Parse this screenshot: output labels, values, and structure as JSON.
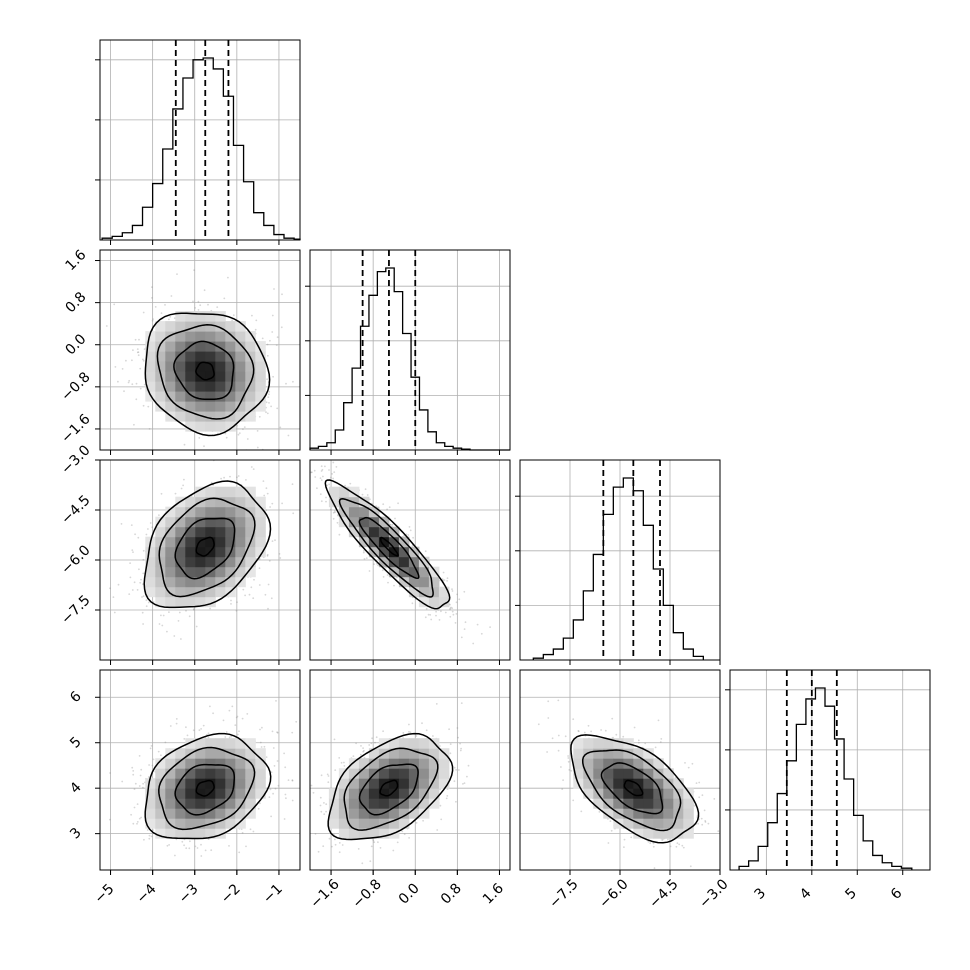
{
  "chart_data": {
    "type": "corner",
    "parameters": [
      {
        "index": 0,
        "ticks": [
          -5,
          -4,
          -3,
          -2,
          -1
        ],
        "tick_labels": [
          "−5",
          "−4",
          "−3",
          "−2",
          "−1"
        ],
        "range": [
          -5.25,
          -0.5
        ],
        "histogram": {
          "bin_edges": [
            -5.2,
            -4.96,
            -4.72,
            -4.48,
            -4.24,
            -4.0,
            -3.76,
            -3.52,
            -3.28,
            -3.04,
            -2.8,
            -2.56,
            -2.32,
            -2.08,
            -1.84,
            -1.6,
            -1.36,
            -1.12,
            -0.88,
            -0.64,
            -0.5
          ],
          "relative_counts": [
            0.01,
            0.02,
            0.04,
            0.08,
            0.18,
            0.31,
            0.5,
            0.72,
            0.89,
            0.99,
            1.0,
            0.94,
            0.79,
            0.52,
            0.32,
            0.15,
            0.08,
            0.03,
            0.01,
            0.005
          ]
        },
        "quantiles": [
          -3.45,
          -2.75,
          -2.2
        ],
        "yaxis_ticks_relative": [
          0.33,
          0.66,
          0.99
        ]
      },
      {
        "index": 1,
        "ticks": [
          -1.6,
          -0.8,
          0.0,
          0.8,
          1.6
        ],
        "tick_labels": [
          "−1.6",
          "−0.8",
          "0.0",
          "0.8",
          "1.6"
        ],
        "range": [
          -2.0,
          1.8
        ],
        "histogram": {
          "bin_edges": [
            -2.0,
            -1.84,
            -1.68,
            -1.52,
            -1.36,
            -1.2,
            -1.04,
            -0.88,
            -0.72,
            -0.56,
            -0.4,
            -0.24,
            -0.08,
            0.08,
            0.24,
            0.4,
            0.56,
            0.72,
            0.88,
            1.04,
            1.8
          ],
          "relative_counts": [
            0.01,
            0.02,
            0.04,
            0.11,
            0.26,
            0.45,
            0.68,
            0.85,
            0.98,
            1.0,
            0.87,
            0.64,
            0.4,
            0.22,
            0.1,
            0.04,
            0.02,
            0.01,
            0.005,
            0.0
          ]
        },
        "quantiles": [
          -1.0,
          -0.5,
          0.0
        ],
        "yaxis_ticks_relative": [
          0.3,
          0.6,
          0.9
        ]
      },
      {
        "index": 2,
        "ticks": [
          -7.5,
          -6.0,
          -4.5,
          -3.0
        ],
        "tick_labels": [
          "−7.5",
          "−6.0",
          "−4.5",
          "−3.0"
        ],
        "range": [
          -9.0,
          -3.0
        ],
        "histogram": {
          "bin_edges": [
            -8.6,
            -8.3,
            -8.0,
            -7.7,
            -7.4,
            -7.1,
            -6.8,
            -6.5,
            -6.2,
            -5.9,
            -5.6,
            -5.3,
            -5.0,
            -4.7,
            -4.4,
            -4.1,
            -3.8,
            -3.5
          ],
          "relative_counts": [
            0.01,
            0.03,
            0.06,
            0.12,
            0.22,
            0.38,
            0.58,
            0.8,
            0.95,
            1.0,
            0.93,
            0.74,
            0.5,
            0.3,
            0.15,
            0.06,
            0.02
          ]
        },
        "quantiles": [
          -6.5,
          -5.6,
          -4.8
        ],
        "yaxis_ticks_relative": [
          0.3,
          0.6,
          0.9
        ]
      },
      {
        "index": 3,
        "ticks": [
          3,
          4,
          5,
          6
        ],
        "tick_labels": [
          "3",
          "4",
          "5",
          "6"
        ],
        "range": [
          2.2,
          6.6
        ],
        "histogram": {
          "bin_edges": [
            2.4,
            2.61,
            2.82,
            3.03,
            3.24,
            3.45,
            3.66,
            3.87,
            4.08,
            4.29,
            4.5,
            4.71,
            4.92,
            5.13,
            5.34,
            5.55,
            5.76,
            5.97,
            6.2
          ],
          "relative_counts": [
            0.02,
            0.05,
            0.13,
            0.26,
            0.42,
            0.6,
            0.8,
            0.94,
            1.0,
            0.9,
            0.72,
            0.5,
            0.3,
            0.16,
            0.08,
            0.04,
            0.02,
            0.01
          ]
        },
        "quantiles": [
          3.45,
          4.0,
          4.55
        ],
        "yaxis_ticks_relative": [
          0.33,
          0.66,
          0.99
        ]
      }
    ],
    "pairs": [
      {
        "x": 0,
        "y": 1,
        "mean": [
          -2.75,
          -0.5
        ],
        "sd": [
          0.7,
          0.55
        ],
        "corr": -0.1
      },
      {
        "x": 0,
        "y": 2,
        "mean": [
          -2.75,
          -5.6
        ],
        "sd": [
          0.7,
          0.9
        ],
        "corr": 0.35
      },
      {
        "x": 1,
        "y": 2,
        "mean": [
          -0.5,
          -5.6
        ],
        "sd": [
          0.55,
          0.9
        ],
        "corr": -0.9
      },
      {
        "x": 0,
        "y": 3,
        "mean": [
          -2.75,
          4.0
        ],
        "sd": [
          0.7,
          0.55
        ],
        "corr": 0.25
      },
      {
        "x": 1,
        "y": 3,
        "mean": [
          -0.5,
          4.0
        ],
        "sd": [
          0.55,
          0.55
        ],
        "corr": 0.45
      },
      {
        "x": 2,
        "y": 3,
        "mean": [
          -5.6,
          4.0
        ],
        "sd": [
          0.9,
          0.55
        ],
        "corr": -0.55
      }
    ],
    "grid": true,
    "legend": "none"
  }
}
